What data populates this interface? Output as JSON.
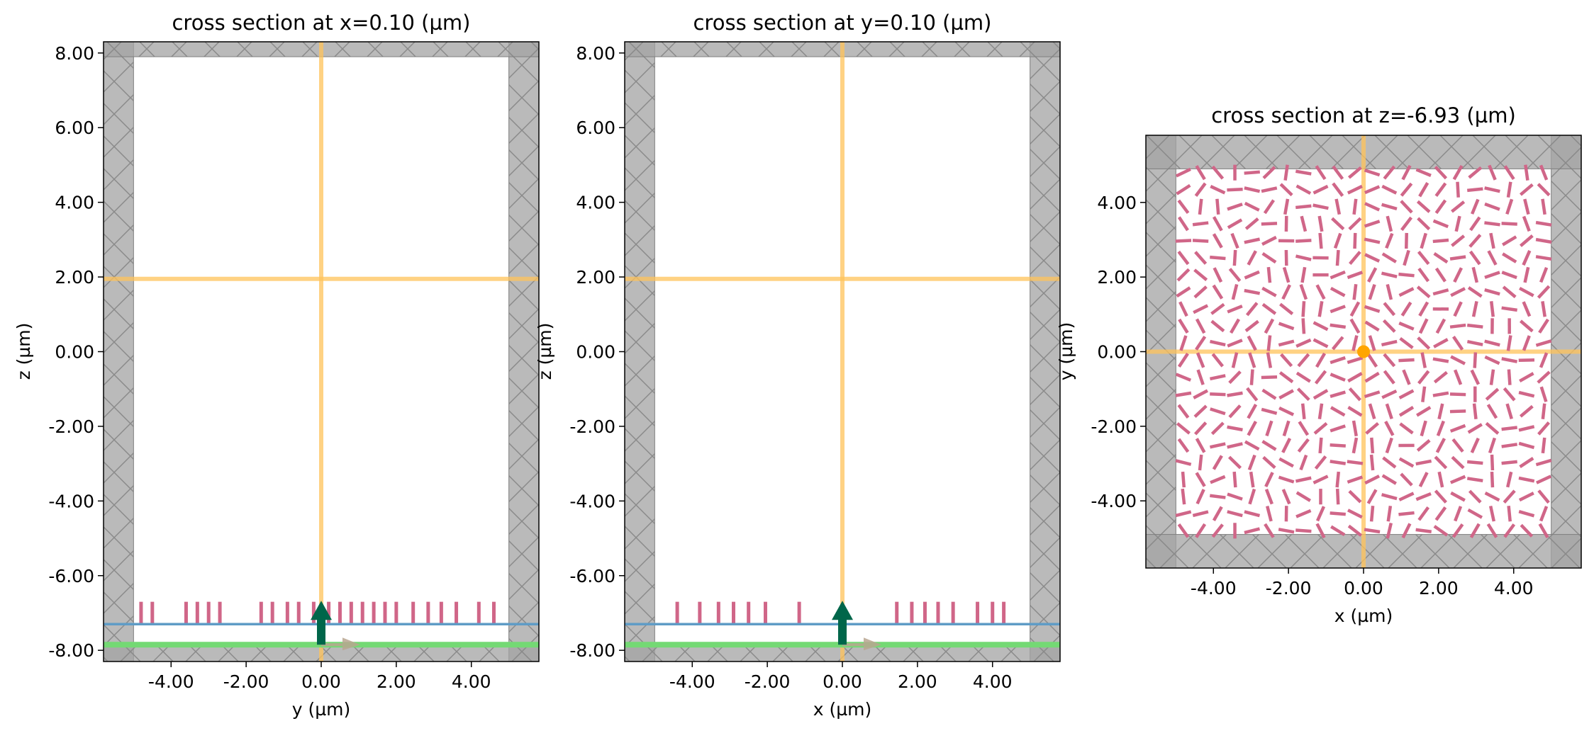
{
  "chart_data": [
    {
      "type": "scatter",
      "title": "cross section at x=0.10 (µm)",
      "xlabel": "y (µm)",
      "ylabel": "z (µm)",
      "xlim": [
        -5.8,
        5.8
      ],
      "ylim": [
        -8.3,
        8.3
      ],
      "xticks": [
        "-4.00",
        "-2.00",
        "0.00",
        "2.00",
        "4.00"
      ],
      "yticks": [
        "-8.00",
        "-6.00",
        "-4.00",
        "-2.00",
        "0.00",
        "2.00",
        "4.00",
        "6.00",
        "8.00"
      ],
      "monitor_lines": {
        "horizontal_at": 1.95,
        "vertical_at": 0.0
      },
      "pml_thickness": 0.9,
      "substrate_line_z": -7.3,
      "source_line_z": -7.85,
      "pillars": {
        "z_min": -7.3,
        "z_max": -6.7,
        "positions": [
          -4.8,
          -4.5,
          -3.6,
          -3.3,
          -3.0,
          -2.7,
          -1.6,
          -1.3,
          -0.9,
          -0.6,
          -0.2,
          0.2,
          0.5,
          0.8,
          1.1,
          1.4,
          1.7,
          2.0,
          2.45,
          2.85,
          3.2,
          3.6,
          4.2,
          4.6
        ]
      },
      "source_arrow": {
        "x": 0.0,
        "label": "source direction +z"
      }
    },
    {
      "type": "scatter",
      "title": "cross section at y=0.10 (µm)",
      "xlabel": "x (µm)",
      "ylabel": "z (µm)",
      "xlim": [
        -5.8,
        5.8
      ],
      "ylim": [
        -8.3,
        8.3
      ],
      "xticks": [
        "-4.00",
        "-2.00",
        "0.00",
        "2.00",
        "4.00"
      ],
      "yticks": [
        "-8.00",
        "-6.00",
        "-4.00",
        "-2.00",
        "0.00",
        "2.00",
        "4.00",
        "6.00",
        "8.00"
      ],
      "monitor_lines": {
        "horizontal_at": 1.95,
        "vertical_at": 0.0
      },
      "pml_thickness": 0.9,
      "substrate_line_z": -7.3,
      "source_line_z": -7.85,
      "pillars": {
        "z_min": -7.3,
        "z_max": -6.7,
        "positions": [
          -4.4,
          -3.8,
          -3.3,
          -2.9,
          -2.5,
          -2.05,
          -1.15,
          1.45,
          1.85,
          2.2,
          2.55,
          2.95,
          3.6,
          4.0,
          4.3
        ]
      },
      "source_arrow": {
        "x": 0.0,
        "label": "source direction +z"
      }
    },
    {
      "type": "scatter",
      "title": "cross section at z=-6.93 (µm)",
      "xlabel": "x (µm)",
      "ylabel": "y (µm)",
      "xlim": [
        -5.8,
        5.8
      ],
      "ylim": [
        -5.8,
        5.8
      ],
      "xticks": [
        "-4.00",
        "-2.00",
        "0.00",
        "2.00",
        "4.00"
      ],
      "yticks": [
        "-4.00",
        "-2.00",
        "0.00",
        "2.00",
        "4.00"
      ],
      "monitor_lines": {
        "horizontal_at": 0.0,
        "vertical_at": 0.0
      },
      "pml_thickness": 0.9,
      "source_point": {
        "x": 0.0,
        "y": 0.0
      },
      "pillar_grid": {
        "n": 22,
        "extent": [
          -4.8,
          4.8
        ],
        "length": 0.42
      }
    }
  ],
  "colors": {
    "pml": "#a3a3a3",
    "pml_border": "#7f7f7f",
    "monitor": "#ffc35a",
    "pillar": "#d06688",
    "substrate": "#5f9cc6",
    "source": "#74d974",
    "arrow": "#00664a",
    "arrow2": "#b8a690",
    "point": "#ffa500"
  }
}
